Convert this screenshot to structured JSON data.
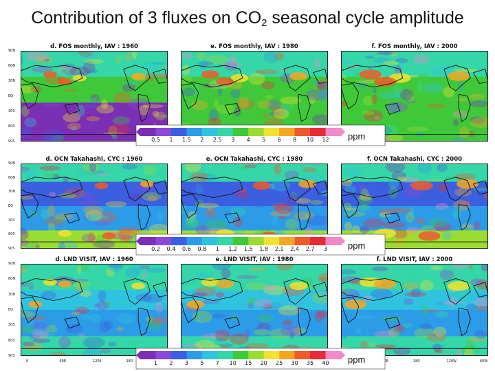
{
  "title": {
    "main": "Contribution of 3 fluxes on CO",
    "sub": "2",
    "rest": " seasonal cycle amplitude"
  },
  "rows": [
    {
      "id": "fos",
      "panels": [
        {
          "label": "d. FOS monthly, IAV : 1960"
        },
        {
          "label": "e. FOS monthly, IAV : 1980"
        },
        {
          "label": "f. FOS monthly, IAV : 2000"
        }
      ],
      "colorbar": {
        "ticks": [
          "0.5",
          "1",
          "1.5",
          "2",
          "2.5",
          "3",
          "4",
          "5",
          "6",
          "8",
          "10",
          "12"
        ],
        "unit": "ppm"
      }
    },
    {
      "id": "ocn",
      "panels": [
        {
          "label": "d. OCN Takahashi, CYC : 1960"
        },
        {
          "label": "e. OCN Takahashi, CYC : 1980"
        },
        {
          "label": "f. OCN Takahashi, CYC : 2000"
        }
      ],
      "colorbar": {
        "ticks": [
          "0.2",
          "0.4",
          "0.6",
          "0.8",
          "1",
          "1.2",
          "1.5",
          "1.8",
          "2.1",
          "2.4",
          "2.7",
          "3"
        ],
        "unit": "ppm"
      }
    },
    {
      "id": "lnd",
      "panels": [
        {
          "label": "d. LND VISIT, IAV : 1960"
        },
        {
          "label": "e. LND VISIT, IAV : 1980"
        },
        {
          "label": "f. LND VISIT, IAV : 2000"
        }
      ],
      "colorbar": {
        "ticks": [
          "1",
          "2",
          "3",
          "5",
          "7",
          "10",
          "15",
          "20",
          "25",
          "30",
          "35",
          "40"
        ],
        "unit": "ppm"
      }
    }
  ],
  "lat_labels": [
    "90N",
    "60N",
    "30N",
    "EQ",
    "30S",
    "60S",
    "90S"
  ],
  "lon_labels_left": [
    "0",
    "60E",
    "120E",
    "180",
    "120W"
  ],
  "lon_labels_right": [
    "60E",
    "120E",
    "180",
    "120W",
    "60W"
  ],
  "palette": [
    "#7b2fb5",
    "#8e48d8",
    "#3b5fe0",
    "#2c9be8",
    "#2fc3e0",
    "#35d6a8",
    "#3fc93a",
    "#9bdc32",
    "#f0e230",
    "#f5a623",
    "#ef5a2a",
    "#e8293a",
    "#f08ac8"
  ]
}
